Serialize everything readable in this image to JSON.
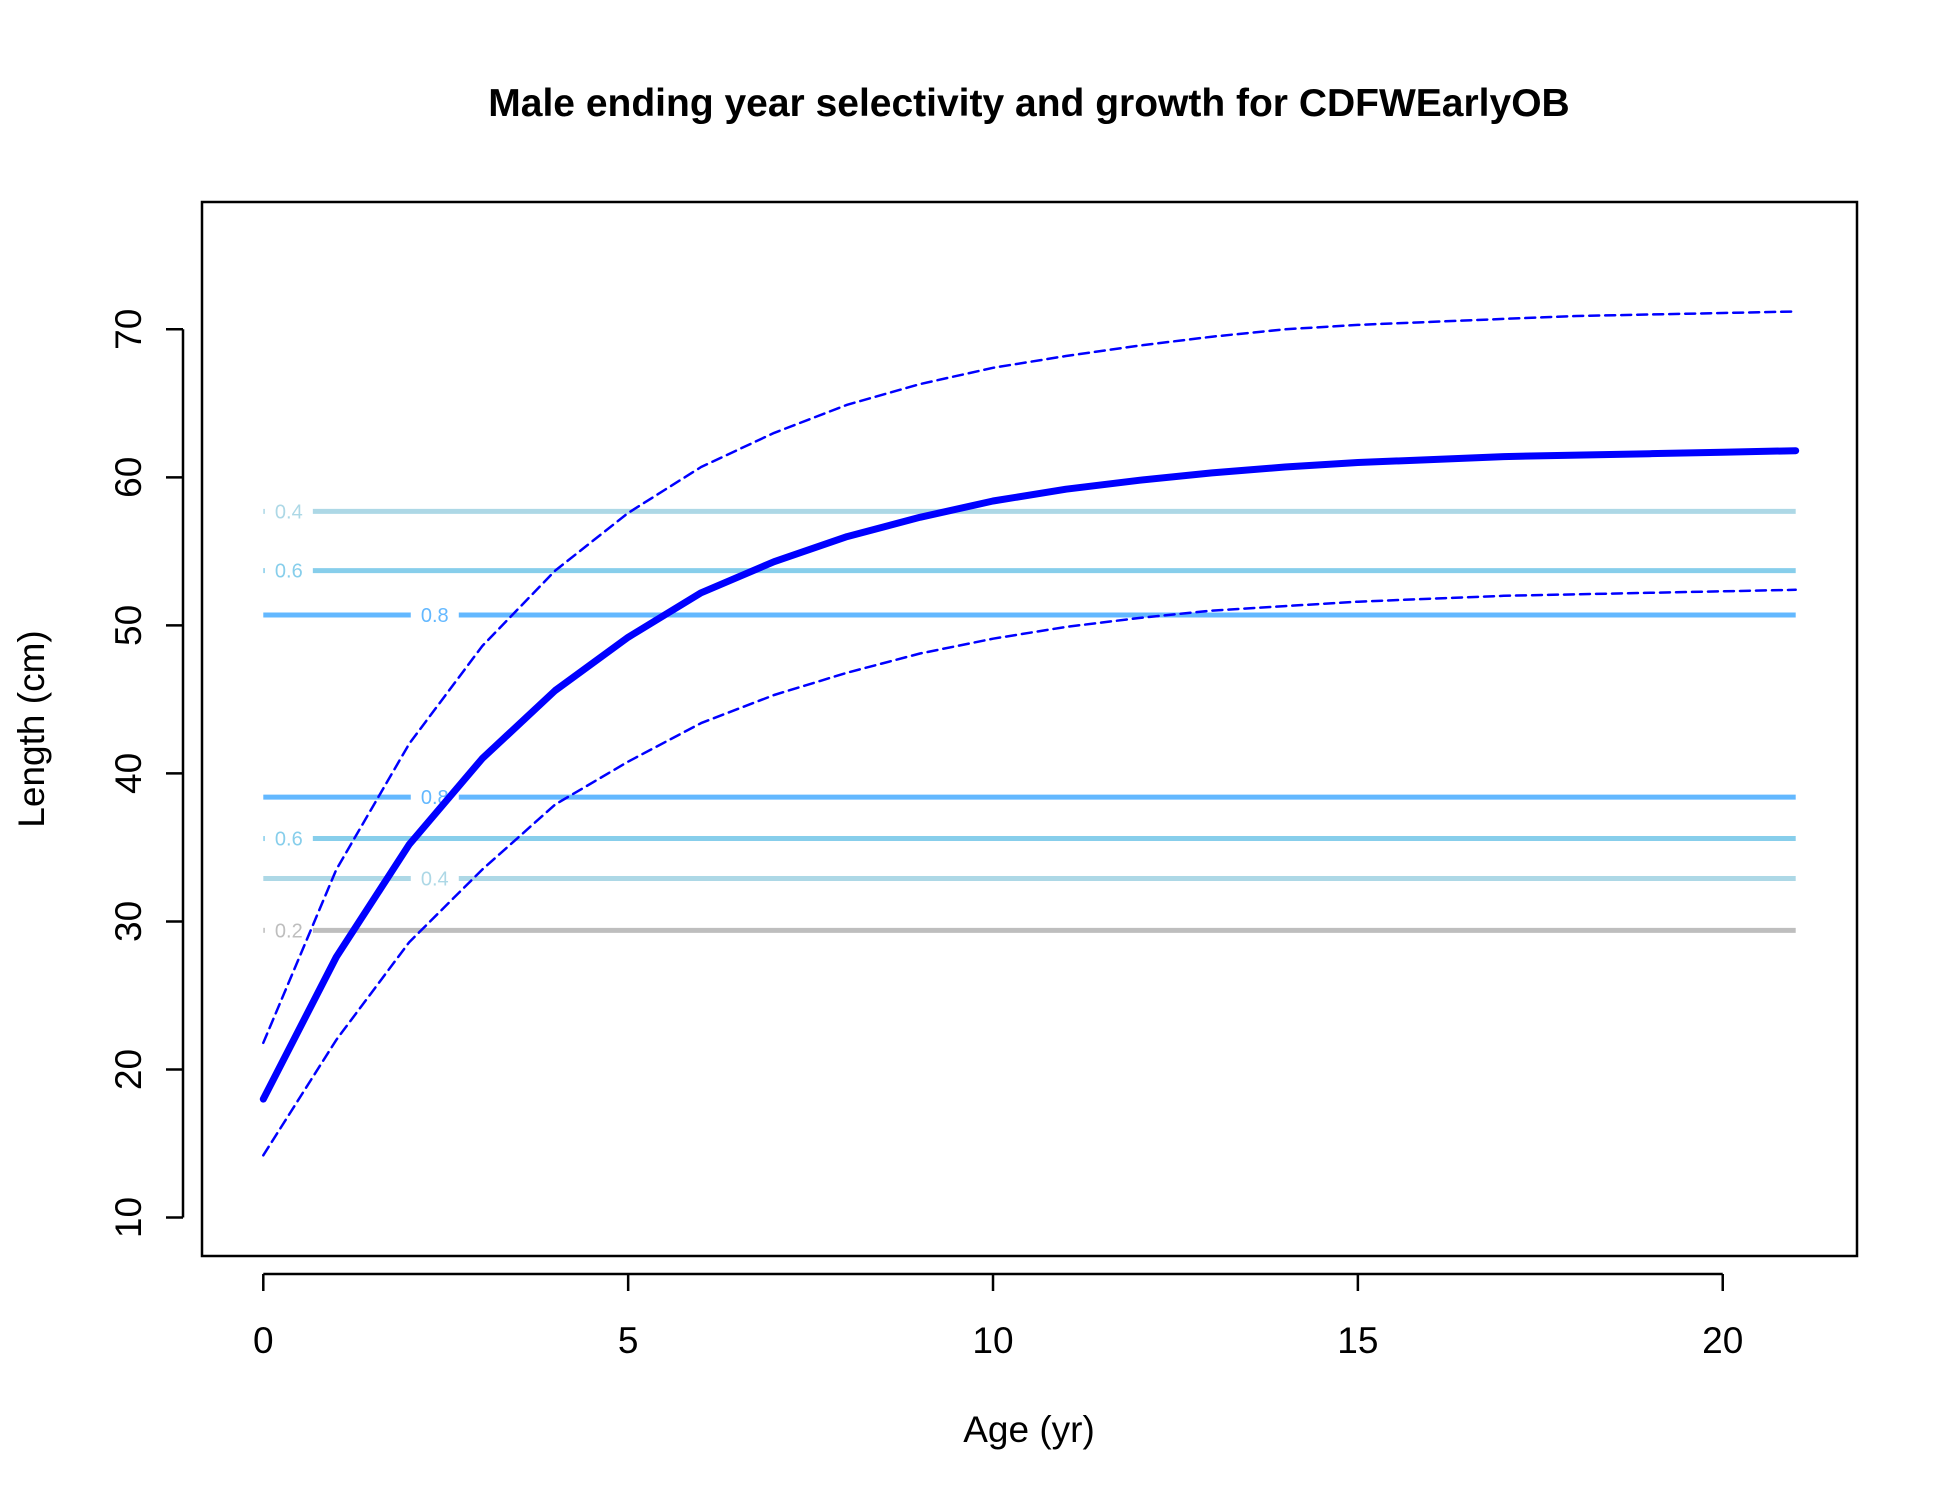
{
  "chart_data": {
    "type": "line",
    "title": "Male ending year selectivity and growth for CDFWEarlyOB",
    "xlabel": "Age (yr)",
    "ylabel": "Length (cm)",
    "xlim": [
      -0.84,
      21.84
    ],
    "ylim": [
      7.4,
      78.6
    ],
    "xticks": [
      0,
      5,
      10,
      15,
      20
    ],
    "yticks": [
      10,
      20,
      30,
      40,
      50,
      60,
      70
    ],
    "grid": false,
    "colors": {
      "mean": "#0000FF",
      "bounds": "#0000FF",
      "contour_0.2": "#BEBEBE",
      "contour_0.4": "#ADD8E6",
      "contour_0.6": "#87CEEB",
      "contour_0.8": "#63B8FF"
    },
    "series": [
      {
        "role": "mean",
        "x": [
          0,
          1,
          2,
          3,
          4,
          5,
          6,
          7,
          8,
          9,
          10,
          11,
          12,
          13,
          14,
          15,
          16,
          17,
          18,
          19,
          20,
          21
        ],
        "y": [
          18.0,
          27.6,
          35.2,
          41.0,
          45.6,
          49.2,
          52.2,
          54.3,
          56.0,
          57.3,
          58.4,
          59.2,
          59.8,
          60.3,
          60.7,
          61.0,
          61.2,
          61.4,
          61.5,
          61.6,
          61.7,
          61.8
        ]
      },
      {
        "role": "upper",
        "x": [
          0,
          1,
          2,
          3,
          4,
          5,
          6,
          7,
          8,
          9,
          10,
          11,
          12,
          13,
          14,
          15,
          16,
          17,
          18,
          19,
          20,
          21
        ],
        "y": [
          21.8,
          33.5,
          42.0,
          48.6,
          53.7,
          57.6,
          60.7,
          63.0,
          64.9,
          66.3,
          67.4,
          68.2,
          68.9,
          69.5,
          70.0,
          70.3,
          70.5,
          70.7,
          70.9,
          71.0,
          71.1,
          71.2
        ]
      },
      {
        "role": "lower",
        "x": [
          0,
          1,
          2,
          3,
          4,
          5,
          6,
          7,
          8,
          9,
          10,
          11,
          12,
          13,
          14,
          15,
          16,
          17,
          18,
          19,
          20,
          21
        ],
        "y": [
          14.2,
          22.0,
          28.6,
          33.5,
          37.9,
          40.8,
          43.4,
          45.3,
          46.8,
          48.1,
          49.1,
          49.9,
          50.5,
          51.0,
          51.3,
          51.6,
          51.8,
          52.0,
          52.1,
          52.2,
          52.3,
          52.4
        ]
      }
    ],
    "contours": [
      {
        "level": 0.4,
        "label": "0.4",
        "y": 57.7,
        "label_x": 0.35,
        "color": "#ADD8E6"
      },
      {
        "level": 0.6,
        "label": "0.6",
        "y": 53.7,
        "label_x": 0.35,
        "color": "#87CEEB"
      },
      {
        "level": 0.8,
        "label": "0.8",
        "y": 50.7,
        "label_x": 2.35,
        "color": "#63B8FF"
      },
      {
        "level": 0.8,
        "label": "0.8",
        "y": 38.4,
        "label_x": 2.35,
        "color": "#63B8FF"
      },
      {
        "level": 0.6,
        "label": "0.6",
        "y": 35.6,
        "label_x": 0.35,
        "color": "#87CEEB"
      },
      {
        "level": 0.4,
        "label": "0.4",
        "y": 32.9,
        "label_x": 2.35,
        "color": "#ADD8E6"
      },
      {
        "level": 0.2,
        "label": "0.2",
        "y": 29.4,
        "label_x": 0.35,
        "color": "#BEBEBE"
      }
    ]
  }
}
